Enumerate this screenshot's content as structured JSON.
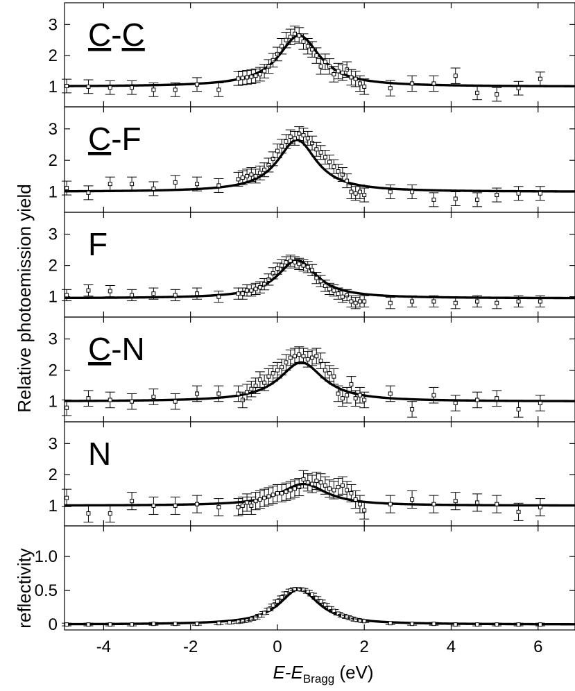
{
  "figure": {
    "x_label_prefix": "E-E",
    "x_label_subscript": "Bragg",
    "x_label_suffix": " (eV)",
    "y_label_photo": "Relative photoemission yield",
    "y_label_reflectivity": "reflectivity"
  },
  "chart_data": [
    {
      "type": "scatter",
      "panel_label": "C-C",
      "label_parts": [
        {
          "text": "C",
          "underline": true
        },
        {
          "text": "-",
          "underline": false
        },
        {
          "text": "C",
          "underline": true
        }
      ],
      "xlim": [
        -4.9,
        6.85
      ],
      "ylim": [
        0.35,
        3.7
      ],
      "yticks": [
        1,
        2,
        3
      ],
      "fit": {
        "baseline": 1.0,
        "amplitude": 1.65,
        "center": 0.5,
        "width": 0.58
      },
      "x": [
        -4.85,
        -4.35,
        -3.85,
        -3.35,
        -2.85,
        -2.35,
        -1.85,
        -1.35,
        -0.9,
        -0.8,
        -0.7,
        -0.6,
        -0.5,
        -0.4,
        -0.3,
        -0.2,
        -0.1,
        0.0,
        0.1,
        0.2,
        0.3,
        0.4,
        0.5,
        0.6,
        0.7,
        0.8,
        0.9,
        1.0,
        1.1,
        1.2,
        1.3,
        1.4,
        1.5,
        1.6,
        1.7,
        1.8,
        1.9,
        2.0,
        2.6,
        3.1,
        3.6,
        4.1,
        4.6,
        5.05,
        5.55,
        6.05
      ],
      "y": [
        1.02,
        1.0,
        0.97,
        0.97,
        0.9,
        0.9,
        1.07,
        0.9,
        1.26,
        1.28,
        1.3,
        1.32,
        1.35,
        1.4,
        1.5,
        1.65,
        1.85,
        2.05,
        2.3,
        2.5,
        2.6,
        2.7,
        2.65,
        2.45,
        2.3,
        2.2,
        2.0,
        1.65,
        1.8,
        1.65,
        1.4,
        1.5,
        1.45,
        1.55,
        1.3,
        1.25,
        1.1,
        1.0,
        0.95,
        1.1,
        1.1,
        1.35,
        0.8,
        0.75,
        0.95,
        1.25
      ],
      "err": [
        0.22,
        0.22,
        0.22,
        0.22,
        0.22,
        0.22,
        0.22,
        0.22,
        0.22,
        0.22,
        0.22,
        0.22,
        0.22,
        0.22,
        0.22,
        0.22,
        0.22,
        0.22,
        0.25,
        0.25,
        0.25,
        0.25,
        0.25,
        0.25,
        0.25,
        0.25,
        0.25,
        0.25,
        0.25,
        0.25,
        0.25,
        0.25,
        0.25,
        0.25,
        0.25,
        0.25,
        0.25,
        0.25,
        0.25,
        0.25,
        0.25,
        0.25,
        0.22,
        0.22,
        0.22,
        0.22
      ]
    },
    {
      "type": "scatter",
      "panel_label": "C-F",
      "label_parts": [
        {
          "text": "C",
          "underline": true
        },
        {
          "text": "-F",
          "underline": false
        }
      ],
      "xlim": [
        -4.9,
        6.85
      ],
      "ylim": [
        0.35,
        3.7
      ],
      "yticks": [
        1,
        2,
        3
      ],
      "fit": {
        "baseline": 1.0,
        "amplitude": 1.65,
        "center": 0.45,
        "width": 0.55
      },
      "x": [
        -4.85,
        -4.35,
        -3.85,
        -3.35,
        -2.85,
        -2.35,
        -1.85,
        -1.35,
        -0.9,
        -0.8,
        -0.7,
        -0.6,
        -0.5,
        -0.4,
        -0.3,
        -0.2,
        -0.1,
        0.0,
        0.1,
        0.2,
        0.3,
        0.4,
        0.5,
        0.6,
        0.7,
        0.8,
        0.9,
        1.0,
        1.1,
        1.2,
        1.3,
        1.4,
        1.5,
        1.6,
        1.7,
        1.8,
        1.9,
        2.0,
        2.6,
        3.1,
        3.6,
        4.1,
        4.6,
        5.05,
        5.55,
        6.05
      ],
      "y": [
        1.12,
        0.97,
        1.25,
        1.25,
        1.1,
        1.3,
        1.25,
        1.2,
        1.4,
        1.45,
        1.5,
        1.55,
        1.5,
        1.6,
        1.7,
        1.85,
        2.05,
        2.3,
        2.45,
        2.6,
        2.75,
        2.7,
        2.85,
        2.8,
        2.7,
        2.55,
        2.35,
        2.25,
        2.1,
        1.95,
        1.8,
        1.65,
        1.55,
        1.35,
        1.0,
        0.95,
        1.0,
        0.9,
        1.0,
        1.0,
        0.75,
        0.78,
        0.75,
        0.9,
        0.95,
        0.95
      ],
      "err": [
        0.22,
        0.22,
        0.22,
        0.22,
        0.22,
        0.22,
        0.22,
        0.22,
        0.22,
        0.22,
        0.22,
        0.22,
        0.22,
        0.22,
        0.22,
        0.22,
        0.22,
        0.22,
        0.22,
        0.22,
        0.22,
        0.22,
        0.22,
        0.22,
        0.22,
        0.22,
        0.22,
        0.22,
        0.22,
        0.22,
        0.22,
        0.22,
        0.22,
        0.22,
        0.22,
        0.22,
        0.22,
        0.22,
        0.22,
        0.22,
        0.22,
        0.22,
        0.22,
        0.22,
        0.22,
        0.22
      ]
    },
    {
      "type": "scatter",
      "panel_label": "F",
      "label_parts": [
        {
          "text": "F",
          "underline": false
        }
      ],
      "xlim": [
        -4.9,
        6.85
      ],
      "ylim": [
        0.35,
        3.7
      ],
      "yticks": [
        1,
        2,
        3
      ],
      "fit": {
        "baseline": 0.95,
        "amplitude": 1.22,
        "center": 0.45,
        "width": 0.55
      },
      "x": [
        -4.85,
        -4.35,
        -3.85,
        -3.35,
        -2.85,
        -2.35,
        -1.85,
        -1.35,
        -0.9,
        -0.8,
        -0.7,
        -0.6,
        -0.5,
        -0.4,
        -0.3,
        -0.2,
        -0.1,
        0.0,
        0.1,
        0.2,
        0.3,
        0.4,
        0.5,
        0.6,
        0.7,
        0.8,
        0.9,
        1.0,
        1.1,
        1.2,
        1.3,
        1.4,
        1.5,
        1.6,
        1.7,
        1.8,
        1.9,
        2.0,
        2.6,
        3.1,
        3.6,
        4.1,
        4.6,
        5.05,
        5.55,
        6.05
      ],
      "y": [
        1.05,
        1.2,
        1.18,
        1.05,
        1.1,
        1.05,
        1.1,
        1.0,
        1.1,
        1.1,
        1.2,
        1.2,
        1.25,
        1.3,
        1.4,
        1.55,
        1.75,
        1.9,
        2.0,
        2.1,
        2.15,
        2.1,
        2.05,
        2.0,
        1.95,
        1.85,
        1.6,
        1.5,
        1.35,
        1.25,
        1.2,
        1.1,
        1.0,
        1.05,
        0.85,
        0.8,
        0.85,
        0.85,
        0.8,
        0.85,
        0.85,
        0.8,
        0.85,
        0.8,
        0.85,
        0.85
      ],
      "err": [
        0.18,
        0.18,
        0.18,
        0.18,
        0.18,
        0.18,
        0.18,
        0.18,
        0.18,
        0.18,
        0.18,
        0.18,
        0.18,
        0.18,
        0.18,
        0.18,
        0.18,
        0.18,
        0.18,
        0.18,
        0.18,
        0.18,
        0.18,
        0.18,
        0.18,
        0.18,
        0.18,
        0.18,
        0.18,
        0.18,
        0.18,
        0.18,
        0.18,
        0.18,
        0.18,
        0.18,
        0.18,
        0.18,
        0.18,
        0.18,
        0.18,
        0.18,
        0.18,
        0.18,
        0.18,
        0.18
      ]
    },
    {
      "type": "scatter",
      "panel_label": "C-N",
      "label_parts": [
        {
          "text": "C",
          "underline": true
        },
        {
          "text": "-N",
          "underline": false
        }
      ],
      "xlim": [
        -4.9,
        6.85
      ],
      "ylim": [
        0.35,
        3.7
      ],
      "yticks": [
        1,
        2,
        3
      ],
      "fit": {
        "baseline": 1.0,
        "amplitude": 1.25,
        "center": 0.55,
        "width": 0.62
      },
      "x": [
        -4.85,
        -4.35,
        -3.85,
        -3.35,
        -2.85,
        -2.35,
        -1.85,
        -1.35,
        -0.9,
        -0.8,
        -0.7,
        -0.6,
        -0.5,
        -0.4,
        -0.3,
        -0.2,
        -0.1,
        0.0,
        0.1,
        0.2,
        0.3,
        0.4,
        0.5,
        0.6,
        0.7,
        0.8,
        0.9,
        1.0,
        1.1,
        1.2,
        1.3,
        1.4,
        1.5,
        1.6,
        1.7,
        1.8,
        1.9,
        2.0,
        2.6,
        3.1,
        3.6,
        4.1,
        4.6,
        5.05,
        5.55,
        6.05
      ],
      "y": [
        0.8,
        1.1,
        1.05,
        1.0,
        1.15,
        1.0,
        1.25,
        1.25,
        1.25,
        1.05,
        1.3,
        1.4,
        1.5,
        1.7,
        1.6,
        1.8,
        1.9,
        2.0,
        2.1,
        2.25,
        2.4,
        2.45,
        2.5,
        2.45,
        2.35,
        2.4,
        2.45,
        2.3,
        2.0,
        1.9,
        1.8,
        1.25,
        1.1,
        1.2,
        1.55,
        1.1,
        1.2,
        1.05,
        1.25,
        0.75,
        1.2,
        0.95,
        1.05,
        1.1,
        0.75,
        0.95
      ],
      "err": [
        0.25,
        0.25,
        0.25,
        0.25,
        0.25,
        0.25,
        0.25,
        0.25,
        0.25,
        0.25,
        0.25,
        0.25,
        0.25,
        0.25,
        0.25,
        0.25,
        0.25,
        0.25,
        0.25,
        0.25,
        0.25,
        0.25,
        0.25,
        0.25,
        0.25,
        0.25,
        0.25,
        0.25,
        0.25,
        0.25,
        0.25,
        0.25,
        0.25,
        0.25,
        0.25,
        0.25,
        0.25,
        0.25,
        0.25,
        0.25,
        0.25,
        0.25,
        0.25,
        0.25,
        0.25,
        0.25
      ]
    },
    {
      "type": "scatter",
      "panel_label": "N",
      "label_parts": [
        {
          "text": "N",
          "underline": false
        }
      ],
      "xlim": [
        -4.9,
        6.85
      ],
      "ylim": [
        0.35,
        3.7
      ],
      "yticks": [
        1,
        2,
        3
      ],
      "fit": {
        "baseline": 1.0,
        "amplitude": 0.7,
        "center": 0.6,
        "width": 0.65
      },
      "x": [
        -4.85,
        -4.35,
        -3.85,
        -3.35,
        -2.85,
        -2.35,
        -1.85,
        -1.35,
        -0.9,
        -0.8,
        -0.7,
        -0.6,
        -0.5,
        -0.4,
        -0.3,
        -0.2,
        -0.1,
        0.0,
        0.1,
        0.2,
        0.3,
        0.4,
        0.5,
        0.6,
        0.7,
        0.8,
        0.9,
        1.0,
        1.1,
        1.2,
        1.3,
        1.4,
        1.5,
        1.6,
        1.7,
        1.8,
        1.9,
        2.0,
        2.6,
        3.1,
        3.6,
        4.1,
        4.6,
        5.05,
        5.55,
        6.05
      ],
      "y": [
        1.25,
        0.75,
        0.75,
        1.15,
        1.0,
        1.0,
        1.05,
        0.95,
        0.95,
        1.0,
        1.1,
        1.0,
        1.15,
        1.2,
        1.25,
        1.3,
        1.35,
        1.4,
        1.4,
        1.45,
        1.5,
        1.55,
        1.6,
        1.85,
        1.75,
        1.7,
        1.8,
        1.75,
        1.65,
        1.55,
        1.5,
        1.6,
        1.65,
        1.5,
        1.4,
        1.2,
        1.05,
        0.85,
        1.05,
        1.2,
        1.05,
        1.15,
        1.1,
        1.05,
        0.8,
        0.95
      ],
      "err": [
        0.28,
        0.28,
        0.28,
        0.28,
        0.28,
        0.28,
        0.28,
        0.28,
        0.28,
        0.28,
        0.28,
        0.28,
        0.28,
        0.28,
        0.28,
        0.28,
        0.28,
        0.28,
        0.28,
        0.28,
        0.28,
        0.28,
        0.28,
        0.28,
        0.28,
        0.28,
        0.28,
        0.28,
        0.28,
        0.28,
        0.28,
        0.28,
        0.28,
        0.28,
        0.28,
        0.28,
        0.28,
        0.28,
        0.28,
        0.28,
        0.28,
        0.28,
        0.28,
        0.28,
        0.28,
        0.28
      ]
    },
    {
      "type": "scatter",
      "panel_label": "",
      "label_parts": [],
      "xlim": [
        -4.9,
        6.85
      ],
      "ylim": [
        -0.08,
        1.45
      ],
      "yticks": [
        0,
        0.5,
        1.0
      ],
      "yticklabels": [
        "0",
        "0.5",
        "1.0"
      ],
      "fit": {
        "baseline": 0.0,
        "amplitude": 0.52,
        "center": 0.5,
        "width": 0.55
      },
      "x": [
        -4.85,
        -4.35,
        -3.85,
        -3.35,
        -2.85,
        -2.35,
        -1.85,
        -1.35,
        -1.1,
        -0.9,
        -0.8,
        -0.7,
        -0.6,
        -0.5,
        -0.4,
        -0.3,
        -0.2,
        -0.1,
        0.0,
        0.1,
        0.2,
        0.3,
        0.4,
        0.5,
        0.6,
        0.7,
        0.8,
        0.9,
        1.0,
        1.1,
        1.2,
        1.3,
        1.4,
        1.5,
        1.6,
        1.7,
        1.8,
        1.9,
        2.0,
        2.6,
        3.1,
        3.6,
        4.1,
        4.6,
        5.05,
        5.55,
        6.05
      ],
      "y": [
        0.0,
        0.0,
        0.0,
        0.0,
        0.01,
        0.01,
        0.01,
        0.02,
        0.03,
        0.04,
        0.05,
        0.06,
        0.08,
        0.1,
        0.13,
        0.17,
        0.22,
        0.28,
        0.34,
        0.4,
        0.46,
        0.5,
        0.52,
        0.52,
        0.51,
        0.48,
        0.44,
        0.39,
        0.34,
        0.29,
        0.24,
        0.2,
        0.16,
        0.13,
        0.11,
        0.09,
        0.07,
        0.06,
        0.05,
        0.02,
        0.01,
        0.01,
        0.0,
        0.0,
        0.0,
        0.0,
        0.0
      ],
      "err": [
        0.02,
        0.02,
        0.02,
        0.02,
        0.02,
        0.02,
        0.02,
        0.02,
        0.02,
        0.02,
        0.02,
        0.02,
        0.02,
        0.02,
        0.02,
        0.02,
        0.02,
        0.02,
        0.02,
        0.02,
        0.02,
        0.02,
        0.02,
        0.02,
        0.02,
        0.02,
        0.02,
        0.02,
        0.02,
        0.02,
        0.02,
        0.02,
        0.02,
        0.02,
        0.02,
        0.02,
        0.02,
        0.02,
        0.02,
        0.02,
        0.02,
        0.02,
        0.02,
        0.02,
        0.02,
        0.02,
        0.02
      ]
    }
  ],
  "x_axis": {
    "ticks": [
      -4,
      -2,
      0,
      2,
      4,
      6
    ],
    "ticklabels": [
      "-4",
      "-2",
      "0",
      "2",
      "4",
      "6"
    ]
  }
}
